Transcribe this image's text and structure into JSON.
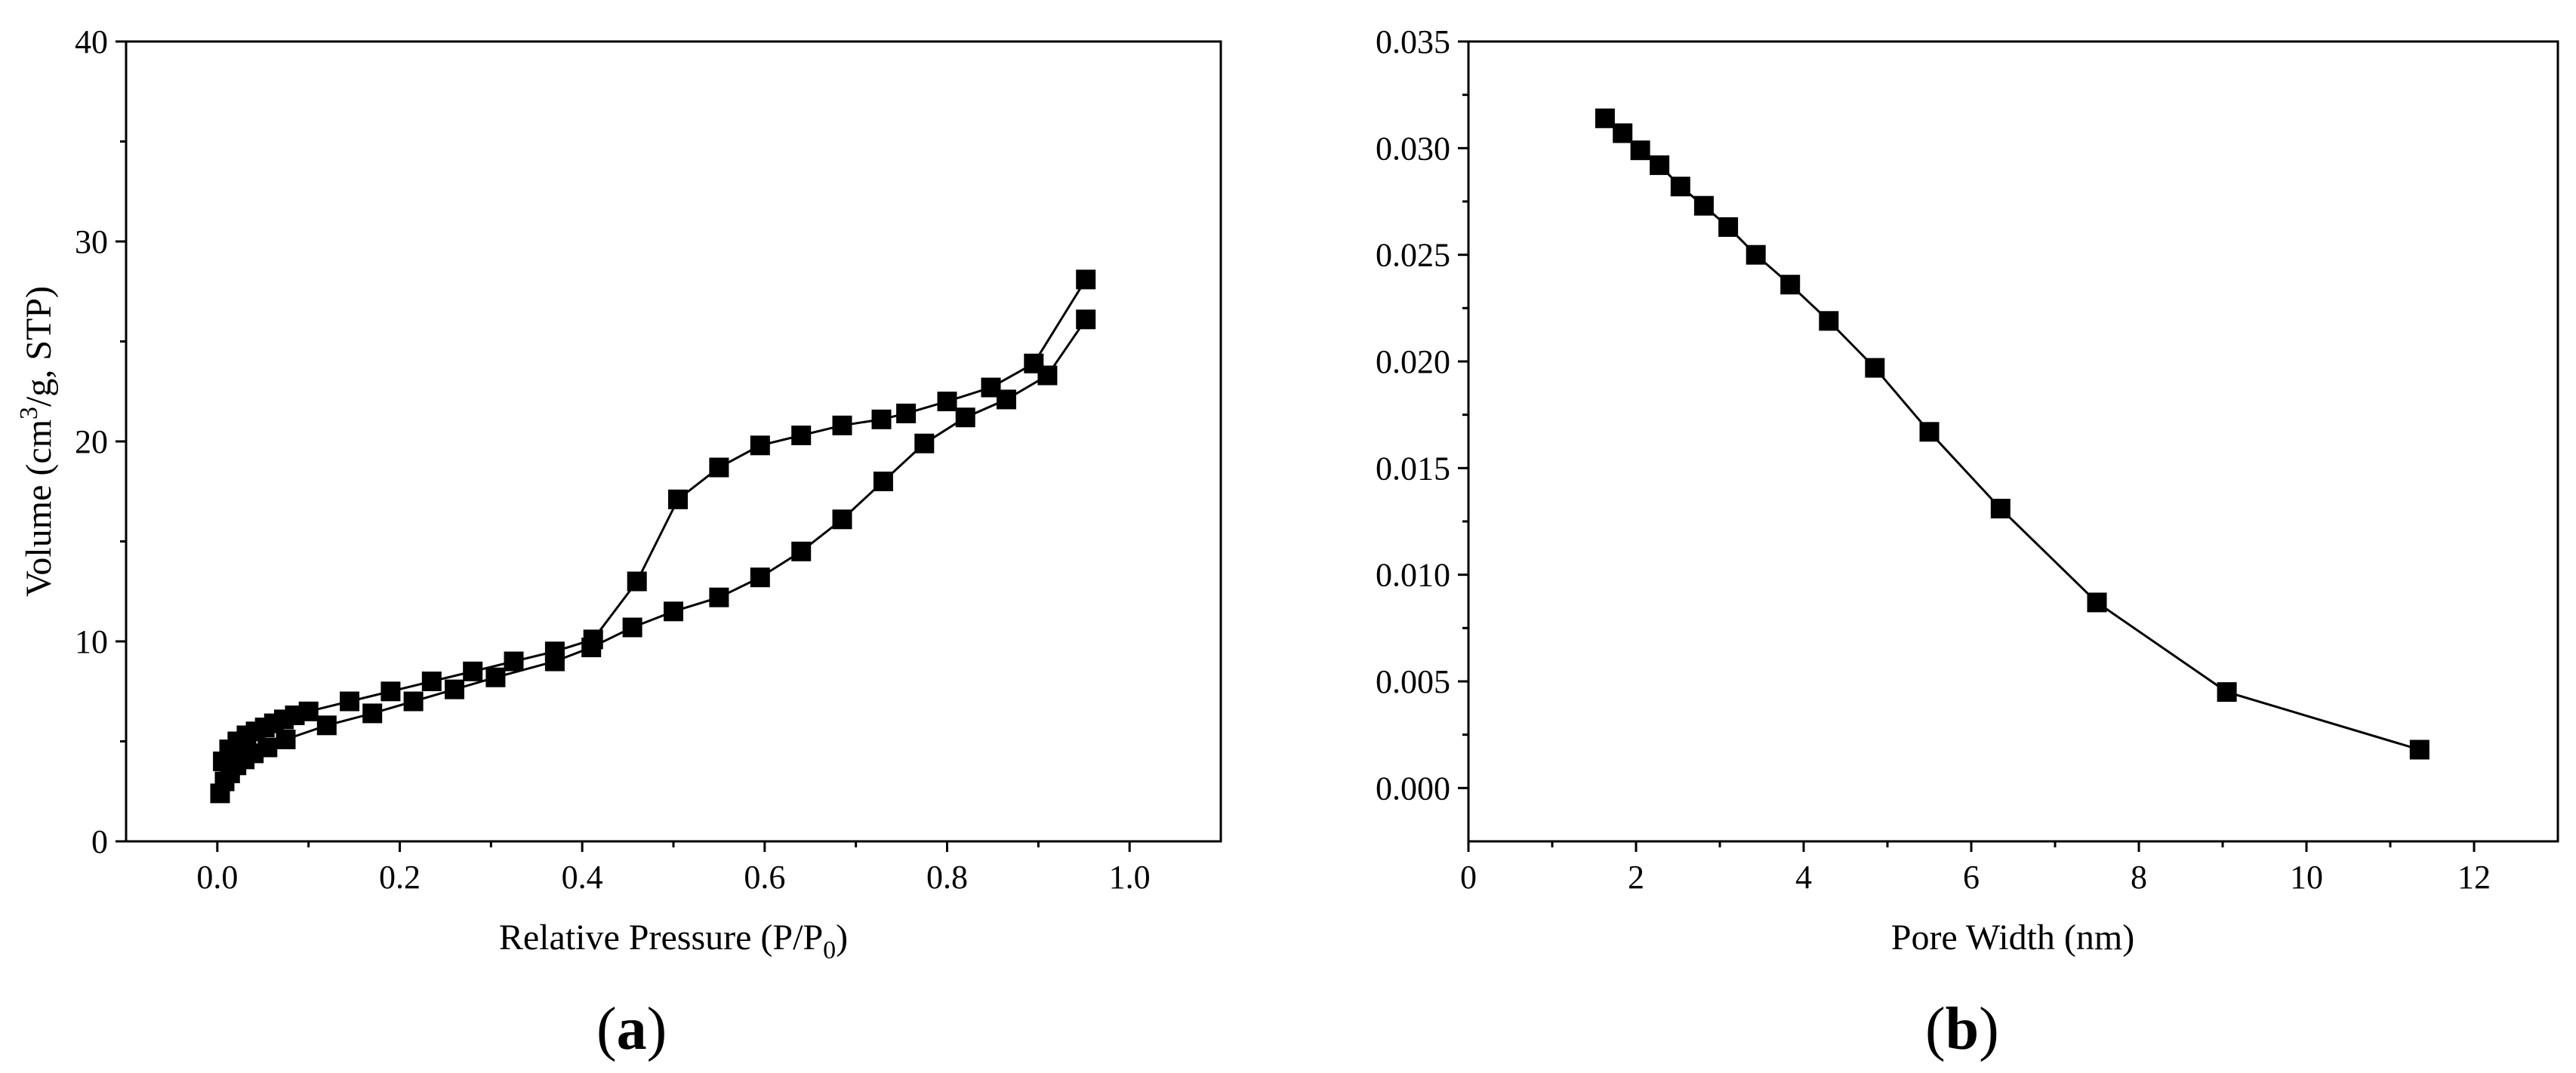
{
  "chart_data": [
    {
      "panel_label": "a",
      "type": "line",
      "title": "",
      "xlabel": "Relative Pressure (P/P",
      "xlabel_subscript": "0",
      "xlabel_suffix": ")",
      "ylabel": "Volume (cm",
      "ylabel_superscript": "3",
      "ylabel_suffix": "/g, STP)",
      "xlim": [
        -0.1,
        1.1
      ],
      "ylim": [
        0,
        40
      ],
      "xticks": [
        0.0,
        0.2,
        0.4,
        0.6,
        0.8,
        1.0
      ],
      "xtick_labels": [
        "0.0",
        "0.2",
        "0.4",
        "0.6",
        "0.8",
        "1.0"
      ],
      "yticks": [
        0,
        10,
        20,
        30,
        40
      ],
      "ytick_labels": [
        "0",
        "10",
        "20",
        "30",
        "40"
      ],
      "grid": false,
      "marker": "filled-square",
      "series": [
        {
          "x": [
            0.003,
            0.008,
            0.014,
            0.021,
            0.03,
            0.04,
            0.055,
            0.075,
            0.12,
            0.17,
            0.215,
            0.26,
            0.305,
            0.37,
            0.41,
            0.455,
            0.5,
            0.55,
            0.595,
            0.64,
            0.685,
            0.73,
            0.775,
            0.82,
            0.865,
            0.91,
            0.952
          ],
          "y": [
            2.4,
            3.0,
            3.4,
            3.8,
            4.1,
            4.4,
            4.7,
            5.1,
            5.8,
            6.4,
            7.0,
            7.6,
            8.2,
            9.0,
            9.7,
            10.7,
            11.5,
            12.2,
            13.2,
            14.5,
            16.1,
            18.0,
            19.9,
            21.2,
            22.1,
            23.3,
            26.1
          ]
        },
        {
          "x": [
            0.952,
            0.895,
            0.848,
            0.8,
            0.755,
            0.728,
            0.685,
            0.64,
            0.595,
            0.55,
            0.505,
            0.46,
            0.412,
            0.37,
            0.325,
            0.28,
            0.235,
            0.19,
            0.145,
            0.1,
            0.085,
            0.073,
            0.062,
            0.052,
            0.042,
            0.032,
            0.022,
            0.013,
            0.006
          ],
          "y": [
            28.1,
            23.9,
            22.7,
            22.0,
            21.4,
            21.1,
            20.8,
            20.3,
            19.8,
            18.7,
            17.1,
            13.0,
            10.1,
            9.5,
            9.0,
            8.5,
            8.0,
            7.5,
            7.0,
            6.5,
            6.3,
            6.1,
            5.9,
            5.7,
            5.5,
            5.3,
            5.0,
            4.6,
            4.0
          ]
        }
      ]
    },
    {
      "panel_label": "b",
      "type": "line",
      "title": "",
      "xlabel": "Pore Width (nm)",
      "ylabel": "",
      "xlim": [
        0,
        13
      ],
      "ylim": [
        -0.0025,
        0.035
      ],
      "xticks": [
        0,
        2,
        4,
        6,
        8,
        10,
        12
      ],
      "xtick_labels": [
        "0",
        "2",
        "4",
        "6",
        "8",
        "10",
        "12"
      ],
      "yticks": [
        0.0,
        0.005,
        0.01,
        0.015,
        0.02,
        0.025,
        0.03,
        0.035
      ],
      "ytick_labels": [
        "0.000",
        "0.005",
        "0.010",
        "0.015",
        "0.020",
        "0.025",
        "0.030",
        "0.035"
      ],
      "grid": false,
      "marker": "filled-square",
      "series": [
        {
          "x": [
            1.63,
            1.84,
            2.05,
            2.28,
            2.53,
            2.81,
            3.1,
            3.43,
            3.84,
            4.3,
            4.85,
            5.5,
            6.35,
            7.5,
            9.05,
            11.35
          ],
          "y": [
            0.0314,
            0.0307,
            0.0299,
            0.0292,
            0.0282,
            0.0273,
            0.0263,
            0.025,
            0.0236,
            0.0219,
            0.0197,
            0.0167,
            0.0131,
            0.0087,
            0.0045,
            0.0018
          ]
        }
      ]
    }
  ]
}
